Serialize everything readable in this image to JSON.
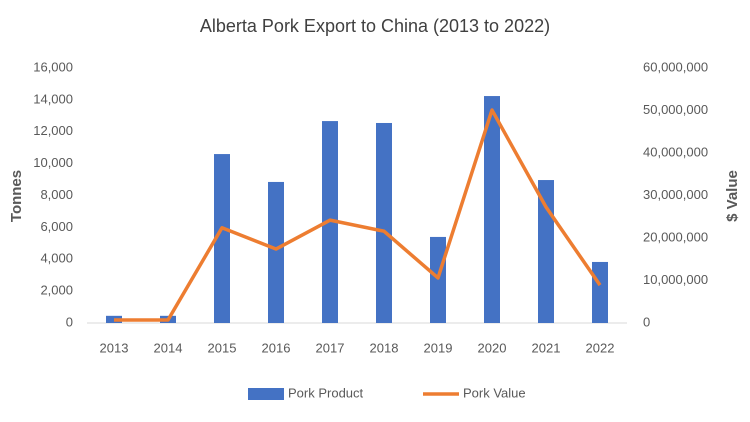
{
  "chart_data": {
    "type": "bar-line",
    "title": "Alberta Pork Export to China (2013 to 2022)",
    "y_label": "Tonnes",
    "y2_label": "$ Value",
    "categories": [
      "2013",
      "2014",
      "2015",
      "2016",
      "2017",
      "2018",
      "2019",
      "2020",
      "2021",
      "2022"
    ],
    "series": [
      {
        "name": "Pork Product",
        "type": "bar",
        "color": "#4472c4",
        "values": [
          450,
          450,
          10600,
          8850,
          12670,
          12550,
          5400,
          14240,
          8970,
          3830
        ]
      },
      {
        "name": "Pork Value",
        "type": "line",
        "axis": "y2",
        "color": "#ed7d31",
        "values": [
          700000,
          700000,
          22400000,
          17400000,
          24200000,
          21600000,
          10600000,
          50100000,
          27300000,
          8900000
        ]
      }
    ],
    "ylim": [
      0,
      16000
    ],
    "yticks": [
      0,
      {
        "value": 2000,
        "label": "2,000"
      },
      {
        "value": 4000,
        "label": "4,000"
      },
      {
        "value": 6000,
        "label": "6,000"
      },
      {
        "value": 8000,
        "label": "8,000"
      },
      {
        "value": 10000,
        "label": "10,000"
      },
      {
        "value": 12000,
        "label": "12,000"
      },
      {
        "value": 14000,
        "label": "14,000"
      },
      {
        "value": 16000,
        "label": "16,000"
      }
    ],
    "y2lim": [
      0,
      60000000
    ],
    "y2ticks": [
      0,
      {
        "value": 10000000,
        "label": "10,000,000"
      },
      {
        "value": 20000000,
        "label": "20,000,000"
      },
      {
        "value": 30000000,
        "label": "30,000,000"
      },
      {
        "value": 40000000,
        "label": "40,000,000"
      },
      {
        "value": 50000000,
        "label": "50,000,000"
      },
      {
        "value": 60000000,
        "label": "60,000,000"
      }
    ],
    "legend": "bottom"
  }
}
